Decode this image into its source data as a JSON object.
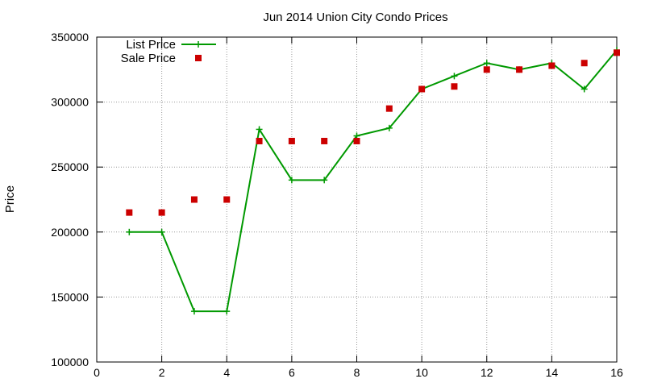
{
  "chart_data": {
    "type": "line",
    "title": "Jun 2014 Union City Condo Prices",
    "xlabel": "",
    "ylabel": "Price",
    "xlim": [
      0,
      16
    ],
    "ylim": [
      100000,
      350000
    ],
    "x_ticks": [
      0,
      2,
      4,
      6,
      8,
      10,
      12,
      14,
      16
    ],
    "y_ticks": [
      100000,
      150000,
      200000,
      250000,
      300000,
      350000
    ],
    "grid": true,
    "legend_position": "top-left",
    "series": [
      {
        "name": "List Price",
        "style": "line-with-plus-markers",
        "color": "#009900",
        "x": [
          1,
          2,
          3,
          4,
          5,
          6,
          7,
          8,
          9,
          10,
          11,
          12,
          13,
          14,
          15,
          16
        ],
        "values": [
          200000,
          200000,
          139000,
          139000,
          279000,
          240000,
          240000,
          274000,
          280000,
          310000,
          320000,
          330000,
          325000,
          330000,
          310000,
          340000
        ]
      },
      {
        "name": "Sale Price",
        "style": "square-markers",
        "color": "#cc0000",
        "x": [
          1,
          2,
          3,
          4,
          5,
          6,
          7,
          8,
          9,
          10,
          11,
          12,
          13,
          14,
          15,
          16
        ],
        "values": [
          215000,
          215000,
          225000,
          225000,
          270000,
          270000,
          270000,
          270000,
          295000,
          310000,
          312000,
          325000,
          325000,
          328000,
          330000,
          338000
        ]
      }
    ]
  }
}
